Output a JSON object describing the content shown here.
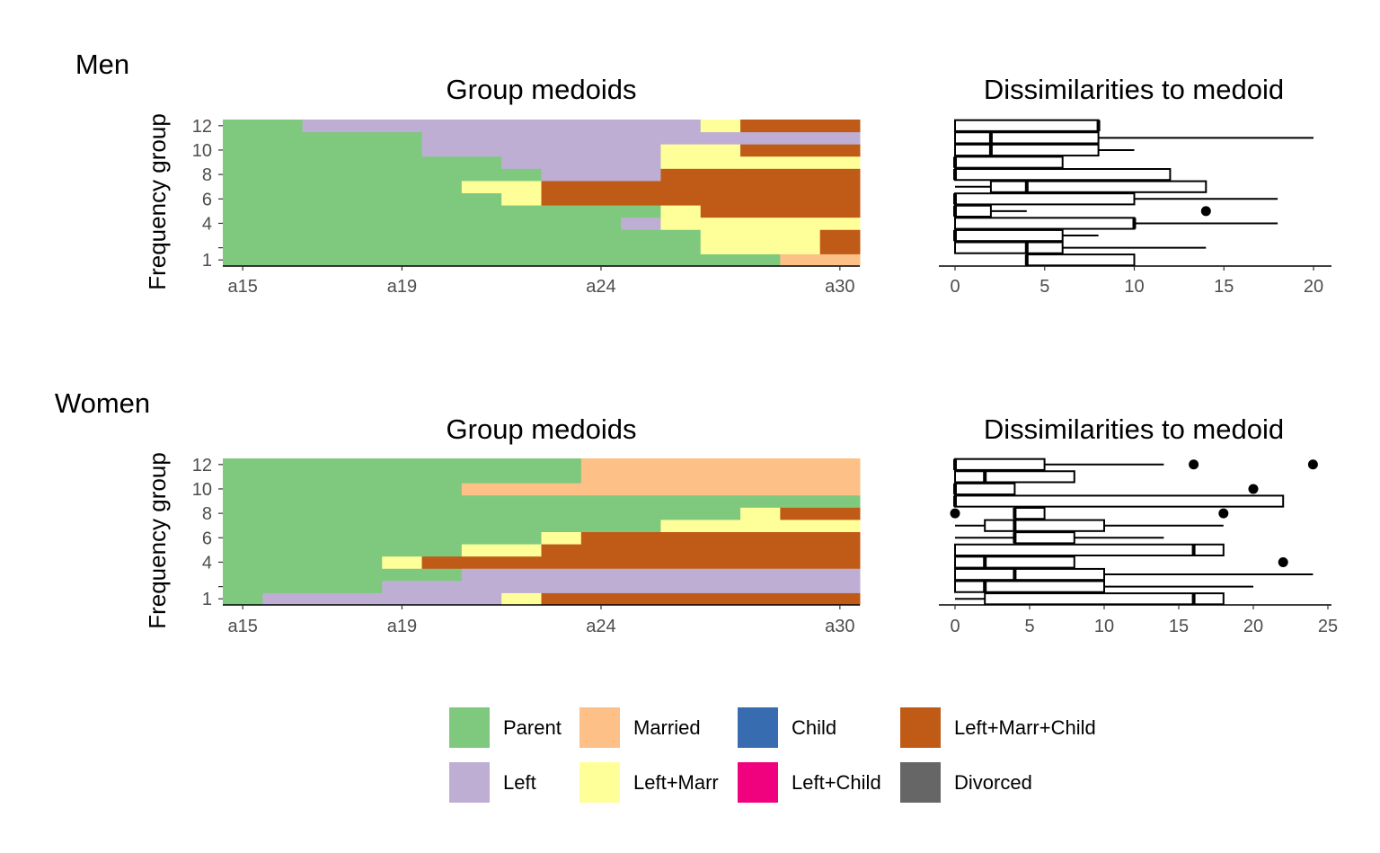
{
  "legend": {
    "items": [
      {
        "label": "Parent",
        "color": "#7FC97F"
      },
      {
        "label": "Married",
        "color": "#FDC086"
      },
      {
        "label": "Child",
        "color": "#386CB0"
      },
      {
        "label": "Left+Marr+Child",
        "color": "#BF5B17"
      },
      {
        "label": "Left",
        "color": "#BEAED4"
      },
      {
        "label": "Left+Marr",
        "color": "#FFFF99"
      },
      {
        "label": "Left+Child",
        "color": "#F0027F"
      },
      {
        "label": "Divorced",
        "color": "#666666"
      }
    ]
  },
  "chart_data": [
    {
      "type": "heatmap",
      "group": "Men",
      "title": "Group medoids",
      "ylabel": "Frequency group",
      "x_ticks": [
        "a15",
        "a19",
        "a24",
        "a30"
      ],
      "y_ticks": [
        "1",
        "",
        "4",
        "6",
        "8",
        "10",
        "12"
      ],
      "rows": [
        {
          "group": 1,
          "seq": [
            [
              "Parent",
              14
            ],
            [
              "Married",
              2
            ]
          ]
        },
        {
          "group": 2,
          "seq": [
            [
              "Parent",
              12
            ],
            [
              "Left+Marr",
              3
            ],
            [
              "Left+Marr+Child",
              1
            ]
          ]
        },
        {
          "group": 3,
          "seq": [
            [
              "Parent",
              12
            ],
            [
              "Left+Marr",
              3
            ],
            [
              "Left+Marr+Child",
              1
            ]
          ]
        },
        {
          "group": 4,
          "seq": [
            [
              "Parent",
              10
            ],
            [
              "Left",
              1
            ],
            [
              "Left+Marr",
              1
            ],
            [
              "Left+Marr",
              4
            ]
          ]
        },
        {
          "group": 5,
          "seq": [
            [
              "Parent",
              11
            ],
            [
              "Left+Marr",
              1
            ],
            [
              "Left+Marr+Child",
              4
            ]
          ]
        },
        {
          "group": 6,
          "seq": [
            [
              "Parent",
              7
            ],
            [
              "Left+Marr",
              1
            ],
            [
              "Left+Marr+Child",
              8
            ]
          ]
        },
        {
          "group": 7,
          "seq": [
            [
              "Parent",
              6
            ],
            [
              "Left+Marr",
              2
            ],
            [
              "Left+Marr+Child",
              8
            ]
          ]
        },
        {
          "group": 8,
          "seq": [
            [
              "Parent",
              8
            ],
            [
              "Left",
              3
            ],
            [
              "Left+Marr+Child",
              5
            ]
          ]
        },
        {
          "group": 9,
          "seq": [
            [
              "Parent",
              7
            ],
            [
              "Left",
              4
            ],
            [
              "Left+Marr",
              2
            ],
            [
              "Left+Marr",
              3
            ]
          ]
        },
        {
          "group": 10,
          "seq": [
            [
              "Parent",
              5
            ],
            [
              "Left",
              6
            ],
            [
              "Left+Marr",
              2
            ],
            [
              "Left+Marr+Child",
              3
            ]
          ]
        },
        {
          "group": 11,
          "seq": [
            [
              "Parent",
              5
            ],
            [
              "Left",
              11
            ]
          ]
        },
        {
          "group": 12,
          "seq": [
            [
              "Parent",
              2
            ],
            [
              "Left",
              10
            ],
            [
              "Left+Marr",
              1
            ],
            [
              "Left+Marr+Child",
              3
            ]
          ]
        }
      ]
    },
    {
      "type": "boxplot",
      "group": "Men",
      "title": "Dissimilarities to medoid",
      "x_ticks": [
        0,
        5,
        10,
        15,
        20
      ],
      "xlim": [
        -1,
        21
      ],
      "boxes": [
        {
          "group": 1,
          "whisker_low": 4,
          "q1": 4,
          "median": 4,
          "q3": 10,
          "whisker_high": 10,
          "outliers": []
        },
        {
          "group": 2,
          "whisker_low": 0,
          "q1": 0,
          "median": 4,
          "q3": 6,
          "whisker_high": 14,
          "outliers": []
        },
        {
          "group": 3,
          "whisker_low": 0,
          "q1": 0,
          "median": 0,
          "q3": 6,
          "whisker_high": 8,
          "outliers": []
        },
        {
          "group": 4,
          "whisker_low": 0,
          "q1": 0,
          "median": 10,
          "q3": 10,
          "whisker_high": 18,
          "outliers": []
        },
        {
          "group": 5,
          "whisker_low": 0,
          "q1": 0,
          "median": 0,
          "q3": 2,
          "whisker_high": 4,
          "outliers": [
            14
          ]
        },
        {
          "group": 6,
          "whisker_low": 0,
          "q1": 0,
          "median": 0,
          "q3": 10,
          "whisker_high": 18,
          "outliers": []
        },
        {
          "group": 7,
          "whisker_low": 0,
          "q1": 2,
          "median": 4,
          "q3": 14,
          "whisker_high": 14,
          "outliers": []
        },
        {
          "group": 8,
          "whisker_low": 0,
          "q1": 0,
          "median": 0,
          "q3": 12,
          "whisker_high": 12,
          "outliers": []
        },
        {
          "group": 9,
          "whisker_low": 0,
          "q1": 0,
          "median": 0,
          "q3": 6,
          "whisker_high": 6,
          "outliers": []
        },
        {
          "group": 10,
          "whisker_low": 0,
          "q1": 0,
          "median": 2,
          "q3": 8,
          "whisker_high": 10,
          "outliers": []
        },
        {
          "group": 11,
          "whisker_low": 0,
          "q1": 0,
          "median": 2,
          "q3": 8,
          "whisker_high": 20,
          "outliers": []
        },
        {
          "group": 12,
          "whisker_low": 0,
          "q1": 0,
          "median": 8,
          "q3": 8,
          "whisker_high": 8,
          "outliers": []
        }
      ]
    },
    {
      "type": "heatmap",
      "group": "Women",
      "title": "Group medoids",
      "ylabel": "Frequency group",
      "x_ticks": [
        "a15",
        "a19",
        "a24",
        "a30"
      ],
      "y_ticks": [
        "1",
        "",
        "4",
        "6",
        "8",
        "10",
        "12"
      ],
      "rows": [
        {
          "group": 1,
          "seq": [
            [
              "Parent",
              1
            ],
            [
              "Left",
              6
            ],
            [
              "Left+Marr",
              1
            ],
            [
              "Left+Marr+Child",
              8
            ]
          ]
        },
        {
          "group": 2,
          "seq": [
            [
              "Parent",
              4
            ],
            [
              "Left",
              12
            ]
          ]
        },
        {
          "group": 3,
          "seq": [
            [
              "Parent",
              6
            ],
            [
              "Left",
              10
            ]
          ]
        },
        {
          "group": 4,
          "seq": [
            [
              "Parent",
              4
            ],
            [
              "Left+Marr",
              1
            ],
            [
              "Left+Marr+Child",
              11
            ]
          ]
        },
        {
          "group": 5,
          "seq": [
            [
              "Parent",
              6
            ],
            [
              "Left+Marr",
              2
            ],
            [
              "Left+Marr+Child",
              8
            ]
          ]
        },
        {
          "group": 6,
          "seq": [
            [
              "Parent",
              8
            ],
            [
              "Left+Marr",
              1
            ],
            [
              "Left+Marr+Child",
              7
            ]
          ]
        },
        {
          "group": 7,
          "seq": [
            [
              "Parent",
              11
            ],
            [
              "Left+Marr",
              5
            ]
          ]
        },
        {
          "group": 8,
          "seq": [
            [
              "Parent",
              13
            ],
            [
              "Left+Marr",
              1
            ],
            [
              "Left+Marr+Child",
              2
            ]
          ]
        },
        {
          "group": 9,
          "seq": [
            [
              "Parent",
              16
            ]
          ]
        },
        {
          "group": 10,
          "seq": [
            [
              "Parent",
              6
            ],
            [
              "Married",
              10
            ]
          ]
        },
        {
          "group": 11,
          "seq": [
            [
              "Parent",
              9
            ],
            [
              "Married",
              7
            ]
          ]
        },
        {
          "group": 12,
          "seq": [
            [
              "Parent",
              9
            ],
            [
              "Married",
              7
            ]
          ]
        }
      ]
    },
    {
      "type": "boxplot",
      "group": "Women",
      "title": "Dissimilarities to medoid",
      "x_ticks": [
        0,
        5,
        10,
        15,
        20,
        25
      ],
      "xlim": [
        -1,
        25
      ],
      "boxes": [
        {
          "group": 1,
          "whisker_low": 0,
          "q1": 2,
          "median": 16,
          "q3": 18,
          "whisker_high": 18,
          "outliers": []
        },
        {
          "group": 2,
          "whisker_low": 0,
          "q1": 0,
          "median": 2,
          "q3": 10,
          "whisker_high": 20,
          "outliers": []
        },
        {
          "group": 3,
          "whisker_low": 0,
          "q1": 0,
          "median": 4,
          "q3": 10,
          "whisker_high": 24,
          "outliers": []
        },
        {
          "group": 4,
          "whisker_low": 0,
          "q1": 0,
          "median": 2,
          "q3": 8,
          "whisker_high": 8,
          "outliers": [
            22
          ]
        },
        {
          "group": 5,
          "whisker_low": 0,
          "q1": 0,
          "median": 16,
          "q3": 18,
          "whisker_high": 18,
          "outliers": []
        },
        {
          "group": 6,
          "whisker_low": 0,
          "q1": 4,
          "median": 4,
          "q3": 8,
          "whisker_high": 14,
          "outliers": []
        },
        {
          "group": 7,
          "whisker_low": 0,
          "q1": 2,
          "median": 4,
          "q3": 10,
          "whisker_high": 18,
          "outliers": []
        },
        {
          "group": 8,
          "whisker_low": 4,
          "q1": 4,
          "median": 4,
          "q3": 6,
          "whisker_high": 6,
          "outliers": [
            0,
            18
          ]
        },
        {
          "group": 9,
          "whisker_low": 0,
          "q1": 0,
          "median": 0,
          "q3": 22,
          "whisker_high": 22,
          "outliers": []
        },
        {
          "group": 10,
          "whisker_low": 0,
          "q1": 0,
          "median": 0,
          "q3": 4,
          "whisker_high": 4,
          "outliers": [
            20
          ]
        },
        {
          "group": 11,
          "whisker_low": 0,
          "q1": 0,
          "median": 2,
          "q3": 8,
          "whisker_high": 8,
          "outliers": []
        },
        {
          "group": 12,
          "whisker_low": 0,
          "q1": 0,
          "median": 0,
          "q3": 6,
          "whisker_high": 14,
          "outliers": [
            16,
            24
          ]
        }
      ]
    }
  ]
}
